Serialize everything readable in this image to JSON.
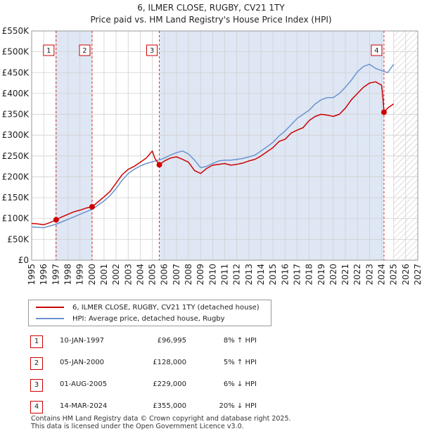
{
  "title": "6, ILMER CLOSE, RUGBY, CV21 1TY",
  "subtitle": "Price paid vs. HM Land Registry's House Price Index (HPI)",
  "colors": {
    "property": "#cc0000",
    "hpi": "#6b93cf",
    "band": "#dfe7f4",
    "grid": "#d0d0d0"
  },
  "legend": [
    {
      "label": "6, ILMER CLOSE, RUGBY, CV21 1TY (detached house)",
      "color": "#cc0000"
    },
    {
      "label": "HPI: Average price, detached house, Rugby",
      "color": "#6b93cf"
    }
  ],
  "sales": [
    {
      "num": "1",
      "date": "10-JAN-1997",
      "price": "£96,995",
      "hpi": "8% ↑ HPI"
    },
    {
      "num": "2",
      "date": "05-JAN-2000",
      "price": "£128,000",
      "hpi": "5% ↑ HPI"
    },
    {
      "num": "3",
      "date": "01-AUG-2005",
      "price": "£229,000",
      "hpi": "6% ↓ HPI"
    },
    {
      "num": "4",
      "date": "14-MAR-2024",
      "price": "£355,000",
      "hpi": "20% ↓ HPI"
    }
  ],
  "footer": [
    "Contains HM Land Registry data © Crown copyright and database right 2025.",
    "This data is licensed under the Open Government Licence v3.0."
  ],
  "chart_data": {
    "type": "line",
    "title": "6, ILMER CLOSE, RUGBY, CV21 1TY",
    "subtitle": "Price paid vs. HM Land Registry's House Price Index (HPI)",
    "xlabel": "",
    "ylabel": "",
    "xlim": [
      1995,
      2027
    ],
    "ylim": [
      0,
      550000
    ],
    "xticks": [
      1995,
      1996,
      1997,
      1998,
      1999,
      2000,
      2001,
      2002,
      2003,
      2004,
      2005,
      2006,
      2007,
      2008,
      2009,
      2010,
      2011,
      2012,
      2013,
      2014,
      2015,
      2016,
      2017,
      2018,
      2019,
      2020,
      2021,
      2022,
      2023,
      2024,
      2025,
      2026,
      2027
    ],
    "yticks": [
      0,
      50000,
      100000,
      150000,
      200000,
      250000,
      300000,
      350000,
      400000,
      450000,
      500000,
      550000
    ],
    "ytick_labels": [
      "£0",
      "£50K",
      "£100K",
      "£150K",
      "£200K",
      "£250K",
      "£300K",
      "£350K",
      "£400K",
      "£450K",
      "£500K",
      "£550K"
    ],
    "grid": true,
    "shaded_bands": [
      [
        1997.03,
        2000.01
      ],
      [
        2005.58,
        2024.2
      ]
    ],
    "hatched_region": [
      2025.0,
      2027
    ],
    "series": [
      {
        "name": "6, ILMER CLOSE, RUGBY, CV21 1TY (detached house)",
        "x": [
          1995.0,
          1995.5,
          1996.0,
          1996.5,
          1997.03,
          1997.5,
          1998.0,
          1998.5,
          1999.0,
          1999.5,
          2000.01,
          2000.5,
          2001.0,
          2001.5,
          2002.0,
          2002.5,
          2003.0,
          2003.5,
          2004.0,
          2004.5,
          2005.0,
          2005.2,
          2005.58,
          2006.0,
          2006.5,
          2007.0,
          2007.5,
          2008.0,
          2008.5,
          2009.0,
          2009.5,
          2010.0,
          2010.5,
          2011.0,
          2011.5,
          2012.0,
          2012.5,
          2013.0,
          2013.5,
          2014.0,
          2014.5,
          2015.0,
          2015.5,
          2016.0,
          2016.5,
          2017.0,
          2017.5,
          2018.0,
          2018.5,
          2019.0,
          2019.5,
          2020.0,
          2020.5,
          2021.0,
          2021.5,
          2022.0,
          2022.5,
          2023.0,
          2023.5,
          2024.0,
          2024.1,
          2024.2,
          2024.5,
          2025.0
        ],
        "y": [
          88000,
          87000,
          85000,
          90000,
          96995,
          104000,
          110000,
          116000,
          120000,
          125000,
          128000,
          140000,
          152000,
          165000,
          185000,
          205000,
          218000,
          225000,
          235000,
          245000,
          262000,
          245000,
          229000,
          238000,
          245000,
          248000,
          242000,
          235000,
          215000,
          208000,
          220000,
          228000,
          230000,
          232000,
          228000,
          230000,
          233000,
          238000,
          242000,
          250000,
          260000,
          270000,
          285000,
          290000,
          305000,
          312000,
          318000,
          335000,
          345000,
          350000,
          348000,
          345000,
          350000,
          365000,
          385000,
          400000,
          415000,
          425000,
          428000,
          420000,
          395000,
          355000,
          365000,
          375000
        ]
      },
      {
        "name": "HPI: Average price, detached house, Rugby",
        "x": [
          1995.0,
          1995.5,
          1996.0,
          1996.5,
          1997.0,
          1997.5,
          1998.0,
          1998.5,
          1999.0,
          1999.5,
          2000.0,
          2000.5,
          2001.0,
          2001.5,
          2002.0,
          2002.5,
          2003.0,
          2003.5,
          2004.0,
          2004.5,
          2005.0,
          2005.5,
          2006.0,
          2006.5,
          2007.0,
          2007.5,
          2008.0,
          2008.5,
          2009.0,
          2009.5,
          2010.0,
          2010.5,
          2011.0,
          2011.5,
          2012.0,
          2012.5,
          2013.0,
          2013.5,
          2014.0,
          2014.5,
          2015.0,
          2015.5,
          2016.0,
          2016.5,
          2017.0,
          2017.5,
          2018.0,
          2018.5,
          2019.0,
          2019.5,
          2020.0,
          2020.5,
          2021.0,
          2021.5,
          2022.0,
          2022.5,
          2023.0,
          2023.5,
          2024.0,
          2024.5,
          2025.0
        ],
        "y": [
          80000,
          79000,
          78000,
          82000,
          86000,
          92000,
          98000,
          104000,
          110000,
          116000,
          122000,
          132000,
          142000,
          155000,
          172000,
          192000,
          208000,
          218000,
          226000,
          232000,
          236000,
          240000,
          245000,
          252000,
          258000,
          262000,
          255000,
          240000,
          222000,
          225000,
          232000,
          238000,
          240000,
          240000,
          242000,
          244000,
          248000,
          252000,
          262000,
          272000,
          283000,
          298000,
          310000,
          325000,
          340000,
          350000,
          360000,
          375000,
          385000,
          390000,
          390000,
          400000,
          415000,
          432000,
          452000,
          465000,
          470000,
          460000,
          455000,
          450000,
          470000
        ]
      }
    ],
    "sale_markers": [
      {
        "label": "1",
        "x": 1997.03,
        "y": 96995
      },
      {
        "label": "2",
        "x": 2000.01,
        "y": 128000
      },
      {
        "label": "3",
        "x": 2005.58,
        "y": 229000
      },
      {
        "label": "4",
        "x": 2024.2,
        "y": 355000
      }
    ]
  }
}
